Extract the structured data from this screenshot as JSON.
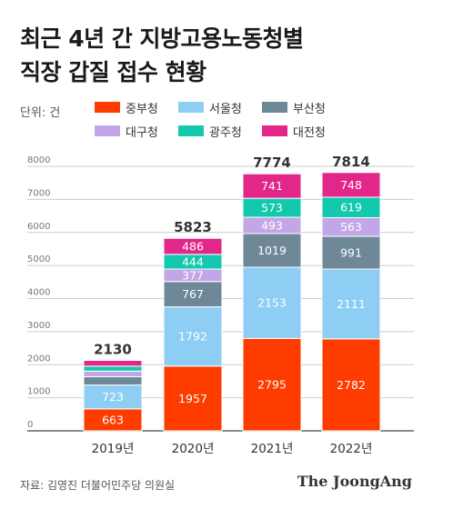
{
  "title_lines": [
    "최근 4년 간 지방고용노동청별",
    "직장 갑질 접수 현황"
  ],
  "unit": "단위: 건",
  "source": "자료: 김영진 더불어민주당 의원실",
  "brand": "The JoongAng",
  "chart_data": {
    "type": "bar",
    "stacked": true,
    "title": "최근 4년 간 지방고용노동청별 직장 갑질 접수 현황",
    "ylabel": "",
    "xlabel": "",
    "ylim": [
      0,
      8000
    ],
    "y_ticks": [
      0,
      1000,
      2000,
      3000,
      4000,
      5000,
      6000,
      7000,
      8000
    ],
    "grid": true,
    "legend": "top",
    "categories": [
      "2019년",
      "2020년",
      "2021년",
      "2022년"
    ],
    "totals": [
      2130,
      5823,
      7774,
      7814
    ],
    "series": [
      {
        "name": "중부청",
        "color": "#ff3c00",
        "values": [
          663,
          1957,
          2795,
          2782
        ]
      },
      {
        "name": "서울청",
        "color": "#8ecdf4",
        "values": [
          723,
          1792,
          2153,
          2111
        ]
      },
      {
        "name": "부산청",
        "color": "#6e8898",
        "values": [
          250,
          767,
          1019,
          991
        ]
      },
      {
        "name": "대구청",
        "color": "#c3a6e8",
        "values": [
          170,
          377,
          493,
          563
        ]
      },
      {
        "name": "광주청",
        "color": "#12c9ad",
        "values": [
          150,
          444,
          573,
          619
        ]
      },
      {
        "name": "대전청",
        "color": "#e3268a",
        "values": [
          174,
          486,
          741,
          748
        ]
      }
    ],
    "labeled": [
      [
        true,
        true,
        true,
        true
      ],
      [
        true,
        true,
        true,
        true
      ],
      [
        false,
        true,
        true,
        true
      ],
      [
        false,
        true,
        true,
        true
      ],
      [
        false,
        true,
        true,
        true
      ],
      [
        false,
        true,
        true,
        true
      ]
    ]
  }
}
